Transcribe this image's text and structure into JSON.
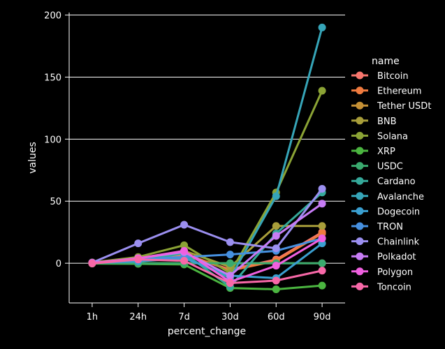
{
  "chart_data": {
    "type": "line",
    "title": "",
    "xlabel": "percent_change",
    "ylabel": "values",
    "categories": [
      "1h",
      "24h",
      "7d",
      "30d",
      "60d",
      "90d"
    ],
    "yticks": [
      0,
      50,
      100,
      150,
      200
    ],
    "ylim": [
      -32,
      202
    ],
    "grid": "horizontal",
    "legend": {
      "title": "name",
      "placement": "right"
    },
    "background": "#000000",
    "series": [
      {
        "name": "Bitcoin",
        "color": "#f8766d",
        "values": [
          0.2,
          2.5,
          6.5,
          -5,
          3,
          25
        ]
      },
      {
        "name": "Ethereum",
        "color": "#f07b3f",
        "values": [
          0.3,
          3.5,
          8,
          -6,
          2,
          24
        ]
      },
      {
        "name": "Tether USDt",
        "color": "#c59035",
        "values": [
          0,
          0,
          0,
          0,
          0,
          0
        ]
      },
      {
        "name": "BNB",
        "color": "#a89e3a",
        "values": [
          0.5,
          3,
          10,
          -3,
          30,
          30
        ]
      },
      {
        "name": "Solana",
        "color": "#8ba335",
        "values": [
          0.6,
          5,
          14.5,
          -8,
          57,
          139
        ]
      },
      {
        "name": "XRP",
        "color": "#4bb540",
        "values": [
          -0.3,
          -0.5,
          -1,
          -20,
          -21,
          -18
        ]
      },
      {
        "name": "USDC",
        "color": "#3aaa6e",
        "values": [
          0,
          0,
          0,
          0,
          0,
          0
        ]
      },
      {
        "name": "Cardano",
        "color": "#35a99a",
        "values": [
          0.3,
          2,
          8,
          -19,
          24,
          57
        ]
      },
      {
        "name": "Avalanche",
        "color": "#36a5b8",
        "values": [
          0.4,
          3,
          5,
          -12,
          54,
          190
        ]
      },
      {
        "name": "Dogecoin",
        "color": "#3a9fd0",
        "values": [
          0.2,
          1.5,
          4,
          -10,
          -12,
          16
        ]
      },
      {
        "name": "TRON",
        "color": "#4690e0",
        "values": [
          0.1,
          3,
          5,
          7,
          10,
          20
        ]
      },
      {
        "name": "Chainlink",
        "color": "#9b8ff0",
        "values": [
          0.5,
          16,
          31,
          17,
          12,
          60
        ]
      },
      {
        "name": "Polkadot",
        "color": "#c77cf5",
        "values": [
          0.2,
          4,
          9,
          -10,
          22,
          48
        ]
      },
      {
        "name": "Polygon",
        "color": "#f060e0",
        "values": [
          0.3,
          4,
          10,
          -15,
          -2,
          20
        ]
      },
      {
        "name": "Toncoin",
        "color": "#f868a8",
        "values": [
          -0.2,
          3,
          2,
          -16,
          -14,
          -6
        ]
      }
    ]
  }
}
